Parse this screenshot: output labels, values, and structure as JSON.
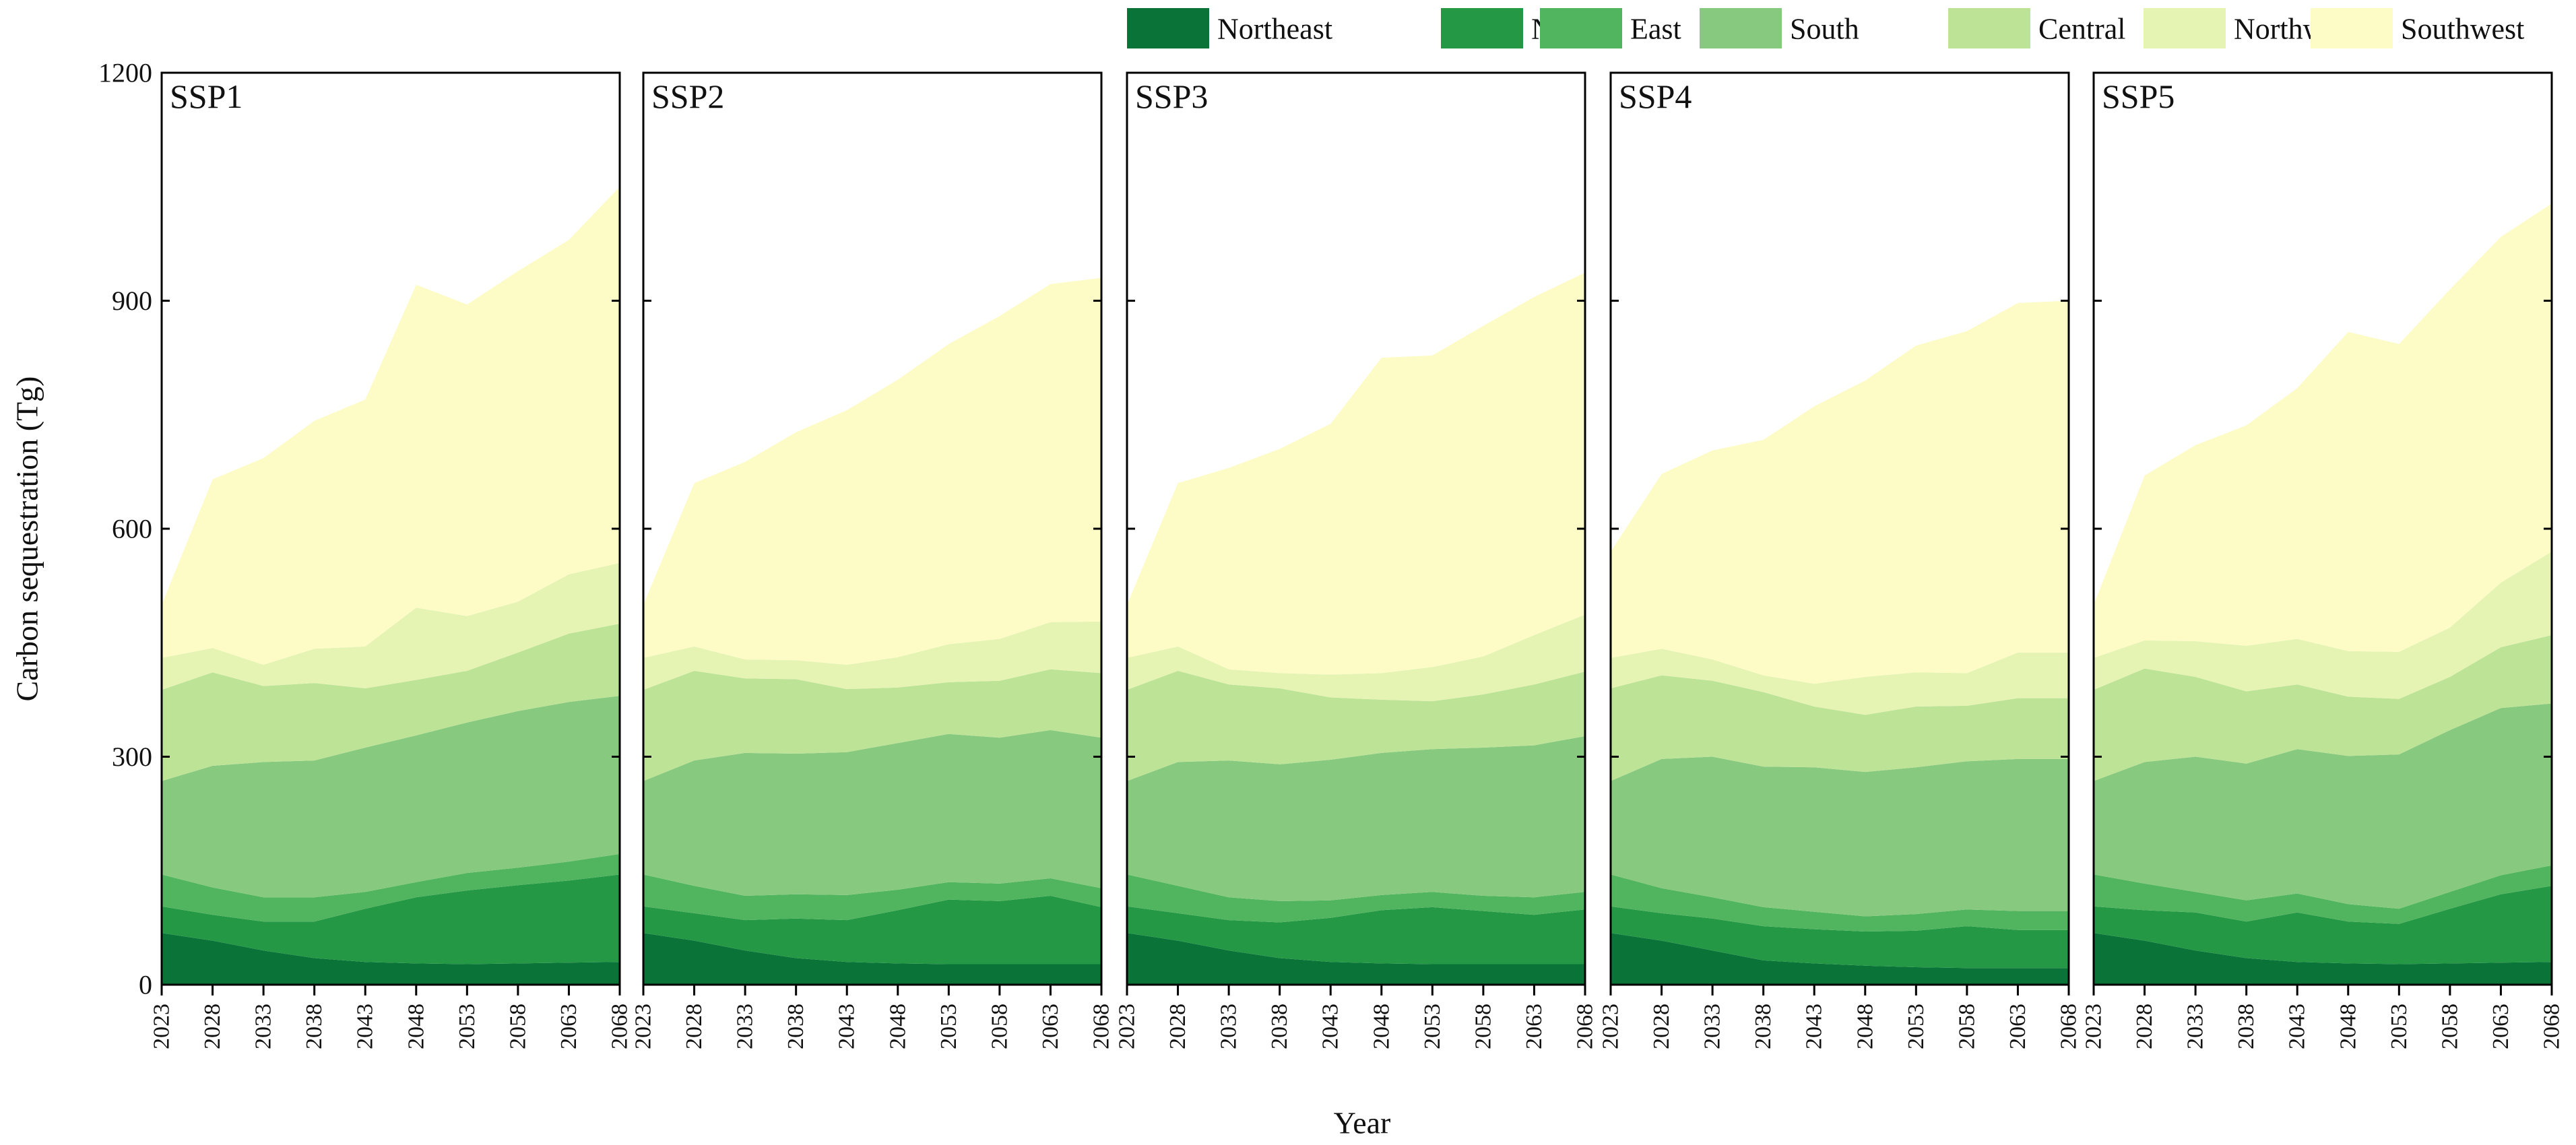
{
  "chart_data": {
    "type": "area",
    "stacked": true,
    "ylabel": "Carbon sequestration (Tg)",
    "xlabel": "Year",
    "ylim": [
      0,
      1200
    ],
    "yticks": [
      "0",
      "300",
      "600",
      "900",
      "1200"
    ],
    "x": [
      "2023",
      "2028",
      "2033",
      "2038",
      "2043",
      "2048",
      "2053",
      "2058",
      "2063",
      "2068"
    ],
    "legend_position": "top-right",
    "grid": false,
    "legend": [
      {
        "name": "Northeast",
        "color": "#0a7438"
      },
      {
        "name": "North",
        "color": "#249845"
      },
      {
        "name": "East",
        "color": "#50b55e"
      },
      {
        "name": "South",
        "color": "#87c97f"
      },
      {
        "name": "Central",
        "color": "#bde396"
      },
      {
        "name": "Northwest",
        "color": "#e5f4b3"
      },
      {
        "name": "Southwest",
        "color": "#fdfcc6"
      }
    ],
    "panels": [
      {
        "title": "SSP1",
        "series": [
          {
            "name": "Northeast",
            "values": [
              68,
              58,
              45,
              35,
              30,
              28,
              27,
              28,
              29,
              30
            ]
          },
          {
            "name": "North",
            "values": [
              35,
              34,
              38,
              48,
              70,
              87,
              97,
              103,
              108,
              115
            ]
          },
          {
            "name": "East",
            "values": [
              42,
              36,
              32,
              32,
              22,
              20,
              23,
              23,
              25,
              27
            ]
          },
          {
            "name": "South",
            "values": [
              123,
              160,
              178,
              180,
              190,
              193,
              198,
              206,
              210,
              208
            ]
          },
          {
            "name": "Central",
            "values": [
              120,
              123,
              100,
              102,
              78,
              73,
              68,
              77,
              90,
              95
            ]
          },
          {
            "name": "Northwest",
            "values": [
              42,
              32,
              28,
              45,
              55,
              95,
              72,
              67,
              78,
              80
            ]
          },
          {
            "name": "Southwest",
            "values": [
              70,
              222,
              272,
              300,
              325,
              425,
              410,
              435,
              440,
              495
            ]
          }
        ]
      },
      {
        "title": "SSP2",
        "series": [
          {
            "name": "Northeast",
            "values": [
              68,
              58,
              45,
              35,
              30,
              28,
              27,
              27,
              27,
              27
            ]
          },
          {
            "name": "North",
            "values": [
              35,
              36,
              40,
              52,
              55,
              70,
              85,
              83,
              90,
              75
            ]
          },
          {
            "name": "East",
            "values": [
              42,
              36,
              32,
              32,
              33,
              27,
              23,
              23,
              23,
              25
            ]
          },
          {
            "name": "South",
            "values": [
              123,
              165,
              188,
              185,
              188,
              193,
              195,
              192,
              195,
              198
            ]
          },
          {
            "name": "Central",
            "values": [
              120,
              118,
              98,
              98,
              83,
              73,
              68,
              75,
              80,
              85
            ]
          },
          {
            "name": "Northwest",
            "values": [
              42,
              32,
              25,
              25,
              32,
              40,
              50,
              55,
              62,
              68
            ]
          },
          {
            "name": "Southwest",
            "values": [
              70,
              215,
              260,
              300,
              335,
              365,
              395,
              425,
              445,
              452
            ]
          }
        ]
      },
      {
        "title": "SSP3",
        "series": [
          {
            "name": "Northeast",
            "values": [
              68,
              58,
              45,
              35,
              30,
              28,
              27,
              27,
              27,
              27
            ]
          },
          {
            "name": "North",
            "values": [
              35,
              36,
              40,
              47,
              58,
              70,
              75,
              70,
              65,
              72
            ]
          },
          {
            "name": "East",
            "values": [
              42,
              36,
              30,
              28,
              23,
              20,
              20,
              20,
              23,
              23
            ]
          },
          {
            "name": "South",
            "values": [
              123,
              163,
              180,
              180,
              185,
              187,
              188,
              195,
              200,
              205
            ]
          },
          {
            "name": "Central",
            "values": [
              120,
              120,
              100,
              100,
              82,
              70,
              63,
              70,
              80,
              85
            ]
          },
          {
            "name": "Northwest",
            "values": [
              42,
              32,
              20,
              20,
              30,
              35,
              45,
              50,
              65,
              75
            ]
          },
          {
            "name": "Southwest",
            "values": [
              70,
              215,
              265,
              295,
              330,
              415,
              410,
              435,
              445,
              450
            ]
          }
        ]
      },
      {
        "title": "SSP4",
        "series": [
          {
            "name": "Northeast",
            "values": [
              68,
              58,
              45,
              32,
              28,
              25,
              23,
              22,
              22,
              22
            ]
          },
          {
            "name": "North",
            "values": [
              35,
              36,
              42,
              45,
              45,
              45,
              48,
              55,
              50,
              50
            ]
          },
          {
            "name": "East",
            "values": [
              42,
              33,
              28,
              25,
              23,
              20,
              22,
              22,
              25,
              25
            ]
          },
          {
            "name": "South",
            "values": [
              123,
              170,
              185,
              185,
              190,
              190,
              193,
              195,
              200,
              200
            ]
          },
          {
            "name": "Central",
            "values": [
              122,
              110,
              100,
              98,
              80,
              75,
              80,
              73,
              80,
              80
            ]
          },
          {
            "name": "Northwest",
            "values": [
              40,
              35,
              28,
              22,
              30,
              50,
              45,
              43,
              60,
              60
            ]
          },
          {
            "name": "Southwest",
            "values": [
              140,
              230,
              275,
              310,
              365,
              390,
              430,
              450,
              460,
              463
            ]
          }
        ]
      },
      {
        "title": "SSP5",
        "series": [
          {
            "name": "Northeast",
            "values": [
              68,
              58,
              45,
              35,
              30,
              28,
              27,
              28,
              29,
              30
            ]
          },
          {
            "name": "North",
            "values": [
              35,
              40,
              50,
              48,
              65,
              55,
              53,
              72,
              90,
              100
            ]
          },
          {
            "name": "East",
            "values": [
              42,
              35,
              27,
              28,
              25,
              23,
              20,
              22,
              25,
              27
            ]
          },
          {
            "name": "South",
            "values": [
              123,
              160,
              178,
              180,
              190,
              195,
              203,
              213,
              220,
              213
            ]
          },
          {
            "name": "Central",
            "values": [
              120,
              123,
              105,
              95,
              85,
              78,
              73,
              70,
              80,
              90
            ]
          },
          {
            "name": "Northwest",
            "values": [
              42,
              37,
              47,
              60,
              60,
              60,
              62,
              65,
              85,
              110
            ]
          },
          {
            "name": "Southwest",
            "values": [
              70,
              217,
              258,
              290,
              330,
              420,
              405,
              445,
              455,
              458
            ]
          }
        ]
      }
    ]
  }
}
